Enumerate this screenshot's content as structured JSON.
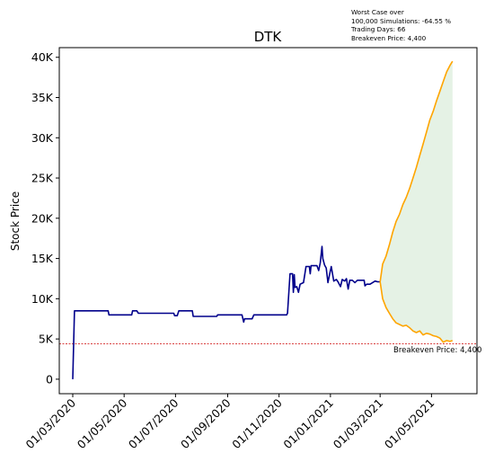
{
  "chart_data": {
    "type": "line",
    "title": "DTK",
    "ylabel": "Stock Price",
    "xlabel": "",
    "grid": false,
    "legend": "none",
    "x_axis_type": "date",
    "xlim": [
      "2020-02-14",
      "2021-06-24"
    ],
    "ylim": [
      -1800,
      41200
    ],
    "y_ticks": [
      0,
      5000,
      10000,
      15000,
      20000,
      25000,
      30000,
      35000,
      40000
    ],
    "y_tick_labels": [
      "0",
      "5K",
      "10K",
      "15K",
      "20K",
      "25K",
      "30K",
      "35K",
      "40K"
    ],
    "x_ticks": [
      "2020-03-01",
      "2020-05-01",
      "2020-07-01",
      "2020-09-01",
      "2020-11-01",
      "2021-01-01",
      "2021-03-01",
      "2021-05-01"
    ],
    "x_tick_labels": [
      "01/03/2020",
      "01/05/2020",
      "01/07/2020",
      "01/09/2020",
      "01/11/2020",
      "01/01/2021",
      "01/03/2021",
      "01/05/2021"
    ],
    "colors": {
      "history": "#00008b",
      "upper": "#ffa500",
      "lower": "#ffa500",
      "band_fill": "#e5f2e5",
      "breakeven": "#cc0000"
    },
    "series": [
      {
        "values": [
          [
            "2020-03-01",
            0
          ],
          [
            "2020-03-03",
            8500
          ],
          [
            "2020-04-12",
            8500
          ],
          [
            "2020-04-13",
            8000
          ],
          [
            "2020-05-10",
            8000
          ],
          [
            "2020-05-11",
            8500
          ],
          [
            "2020-05-16",
            8500
          ],
          [
            "2020-05-18",
            8200
          ],
          [
            "2020-06-29",
            8200
          ],
          [
            "2020-06-30",
            7900
          ],
          [
            "2020-07-03",
            7900
          ],
          [
            "2020-07-05",
            8500
          ],
          [
            "2020-07-21",
            8500
          ],
          [
            "2020-07-22",
            7800
          ],
          [
            "2020-08-19",
            7800
          ],
          [
            "2020-08-20",
            8000
          ],
          [
            "2020-09-18",
            8000
          ],
          [
            "2020-09-20",
            7100
          ],
          [
            "2020-09-21",
            7500
          ],
          [
            "2020-09-30",
            7500
          ],
          [
            "2020-10-02",
            8000
          ],
          [
            "2020-11-10",
            8000
          ],
          [
            "2020-11-11",
            8200
          ],
          [
            "2020-11-14",
            13100
          ],
          [
            "2020-11-17",
            13100
          ],
          [
            "2020-11-18",
            10800
          ],
          [
            "2020-11-19",
            13000
          ],
          [
            "2020-11-20",
            11400
          ],
          [
            "2020-11-22",
            11500
          ],
          [
            "2020-11-24",
            10800
          ],
          [
            "2020-11-26",
            11800
          ],
          [
            "2020-11-30",
            12000
          ],
          [
            "2020-12-03",
            14000
          ],
          [
            "2020-12-07",
            14000
          ],
          [
            "2020-12-08",
            13100
          ],
          [
            "2020-12-09",
            14100
          ],
          [
            "2020-12-16",
            14100
          ],
          [
            "2020-12-18",
            13500
          ],
          [
            "2020-12-20",
            14500
          ],
          [
            "2020-12-22",
            16500
          ],
          [
            "2020-12-23",
            15000
          ],
          [
            "2020-12-25",
            14200
          ],
          [
            "2020-12-27",
            13800
          ],
          [
            "2020-12-29",
            12000
          ],
          [
            "2020-12-31",
            13000
          ],
          [
            "2021-01-02",
            14000
          ],
          [
            "2021-01-05",
            12200
          ],
          [
            "2021-01-08",
            12400
          ],
          [
            "2021-01-10",
            12100
          ],
          [
            "2021-01-13",
            11500
          ],
          [
            "2021-01-15",
            12400
          ],
          [
            "2021-01-18",
            12200
          ],
          [
            "2021-01-20",
            12500
          ],
          [
            "2021-01-22",
            11200
          ],
          [
            "2021-01-24",
            12300
          ],
          [
            "2021-01-27",
            12300
          ],
          [
            "2021-01-30",
            12000
          ],
          [
            "2021-02-02",
            12300
          ],
          [
            "2021-02-10",
            12300
          ],
          [
            "2021-02-11",
            11600
          ],
          [
            "2021-02-13",
            11800
          ],
          [
            "2021-02-17",
            11800
          ],
          [
            "2021-02-20",
            12000
          ],
          [
            "2021-02-23",
            12200
          ],
          [
            "2021-02-26",
            12100
          ],
          [
            "2021-03-01",
            12100
          ]
        ]
      },
      {
        "values": [
          [
            "2021-03-01",
            12100
          ],
          [
            "2021-03-04",
            14300
          ],
          [
            "2021-03-08",
            15300
          ],
          [
            "2021-03-12",
            16700
          ],
          [
            "2021-03-16",
            18300
          ],
          [
            "2021-03-20",
            19600
          ],
          [
            "2021-03-24",
            20500
          ],
          [
            "2021-03-28",
            21700
          ],
          [
            "2021-04-01",
            22600
          ],
          [
            "2021-04-05",
            23700
          ],
          [
            "2021-04-09",
            25000
          ],
          [
            "2021-04-13",
            26300
          ],
          [
            "2021-04-17",
            27800
          ],
          [
            "2021-04-21",
            29200
          ],
          [
            "2021-04-25",
            30700
          ],
          [
            "2021-04-29",
            32200
          ],
          [
            "2021-05-03",
            33300
          ],
          [
            "2021-05-07",
            34600
          ],
          [
            "2021-05-11",
            35800
          ],
          [
            "2021-05-15",
            37000
          ],
          [
            "2021-05-19",
            38200
          ],
          [
            "2021-05-23",
            39000
          ],
          [
            "2021-05-26",
            39500
          ]
        ]
      },
      {
        "values": [
          [
            "2021-03-01",
            12100
          ],
          [
            "2021-03-04",
            10000
          ],
          [
            "2021-03-08",
            8900
          ],
          [
            "2021-03-12",
            8200
          ],
          [
            "2021-03-16",
            7500
          ],
          [
            "2021-03-20",
            7000
          ],
          [
            "2021-03-24",
            6800
          ],
          [
            "2021-03-28",
            6600
          ],
          [
            "2021-04-01",
            6700
          ],
          [
            "2021-04-05",
            6400
          ],
          [
            "2021-04-09",
            6000
          ],
          [
            "2021-04-13",
            5800
          ],
          [
            "2021-04-17",
            6000
          ],
          [
            "2021-04-21",
            5500
          ],
          [
            "2021-04-25",
            5700
          ],
          [
            "2021-04-29",
            5600
          ],
          [
            "2021-05-03",
            5400
          ],
          [
            "2021-05-07",
            5300
          ],
          [
            "2021-05-11",
            5100
          ],
          [
            "2021-05-15",
            4600
          ],
          [
            "2021-05-19",
            4800
          ],
          [
            "2021-05-23",
            4700
          ],
          [
            "2021-05-26",
            4800
          ]
        ]
      }
    ],
    "breakeven": {
      "value": 4400,
      "label": "Breakeven Price: 4,400"
    },
    "annotation": {
      "line1": "Worst Case over",
      "line2": "100,000 Simulations: -64.55 %",
      "line3": "Trading Days: 66",
      "line4": "Breakeven Price: 4,400"
    }
  }
}
